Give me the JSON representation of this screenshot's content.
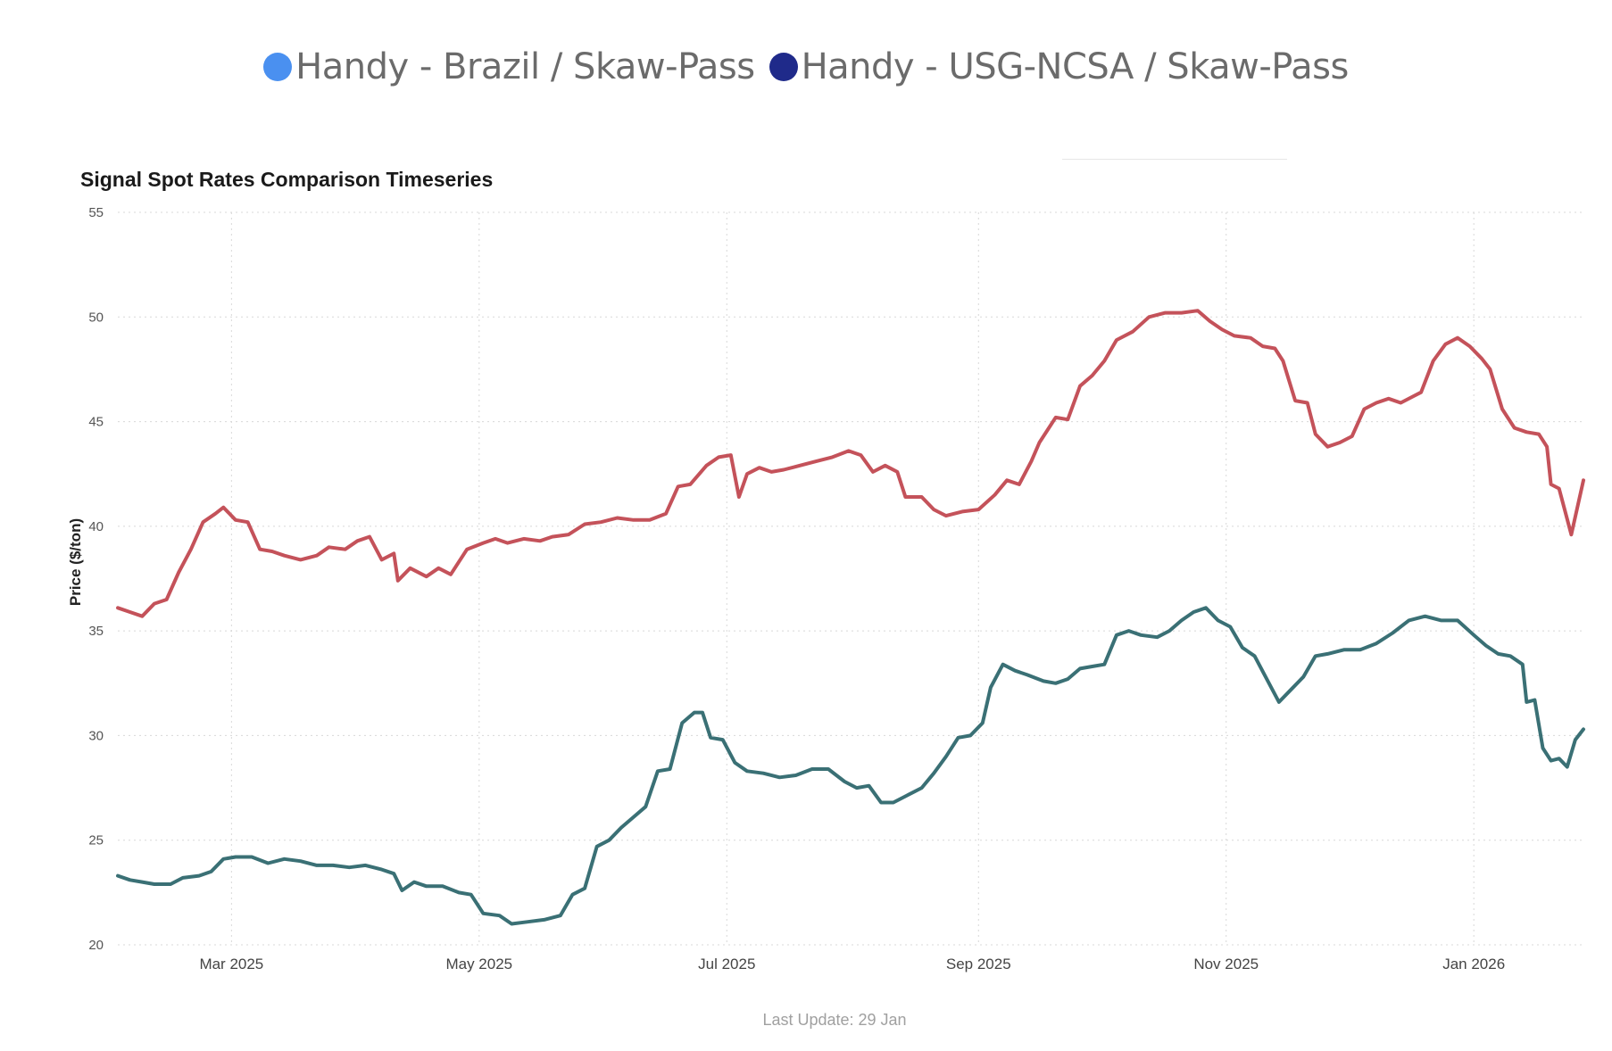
{
  "legend": {
    "items": [
      {
        "label": "Handy - Brazil / Skaw-Pass",
        "color": "#4a90f0"
      },
      {
        "label": "Handy - USG-NCSA / Skaw-Pass",
        "color": "#1f2a8a"
      }
    ]
  },
  "footer": {
    "text": "Last Update: 29 Jan"
  },
  "chart_data": {
    "type": "line",
    "title": "Signal Spot Rates Comparison Timeseries",
    "xlabel": "",
    "ylabel": "Price ($/ton)",
    "ylim": [
      20,
      55
    ],
    "yticks": [
      20,
      25,
      30,
      35,
      40,
      45,
      50,
      55
    ],
    "xlim": [
      "2025-02-01",
      "2026-01-28"
    ],
    "xticks": [
      {
        "date": "2025-03-01",
        "label": "Mar 2025"
      },
      {
        "date": "2025-05-01",
        "label": "May 2025"
      },
      {
        "date": "2025-07-01",
        "label": "Jul 2025"
      },
      {
        "date": "2025-09-01",
        "label": "Sep 2025"
      },
      {
        "date": "2025-11-01",
        "label": "Nov 2025"
      },
      {
        "date": "2026-01-01",
        "label": "Jan 2026"
      }
    ],
    "grid": true,
    "series": [
      {
        "name": "Handy - Brazil / Skaw-Pass",
        "color": "#c4525a",
        "points": [
          [
            "2025-02-01",
            36.1
          ],
          [
            "2025-02-04",
            35.9
          ],
          [
            "2025-02-07",
            35.7
          ],
          [
            "2025-02-10",
            36.3
          ],
          [
            "2025-02-13",
            36.5
          ],
          [
            "2025-02-16",
            37.8
          ],
          [
            "2025-02-19",
            38.9
          ],
          [
            "2025-02-22",
            40.2
          ],
          [
            "2025-02-25",
            40.6
          ],
          [
            "2025-02-27",
            40.9
          ],
          [
            "2025-03-02",
            40.3
          ],
          [
            "2025-03-05",
            40.2
          ],
          [
            "2025-03-08",
            38.9
          ],
          [
            "2025-03-11",
            38.8
          ],
          [
            "2025-03-14",
            38.6
          ],
          [
            "2025-03-18",
            38.4
          ],
          [
            "2025-03-22",
            38.6
          ],
          [
            "2025-03-25",
            39.0
          ],
          [
            "2025-03-29",
            38.9
          ],
          [
            "2025-04-01",
            39.3
          ],
          [
            "2025-04-04",
            39.5
          ],
          [
            "2025-04-07",
            38.4
          ],
          [
            "2025-04-10",
            38.7
          ],
          [
            "2025-04-11",
            37.4
          ],
          [
            "2025-04-14",
            38.0
          ],
          [
            "2025-04-18",
            37.6
          ],
          [
            "2025-04-21",
            38.0
          ],
          [
            "2025-04-24",
            37.7
          ],
          [
            "2025-04-28",
            38.9
          ],
          [
            "2025-05-02",
            39.2
          ],
          [
            "2025-05-05",
            39.4
          ],
          [
            "2025-05-08",
            39.2
          ],
          [
            "2025-05-12",
            39.4
          ],
          [
            "2025-05-16",
            39.3
          ],
          [
            "2025-05-19",
            39.5
          ],
          [
            "2025-05-23",
            39.6
          ],
          [
            "2025-05-27",
            40.1
          ],
          [
            "2025-05-31",
            40.2
          ],
          [
            "2025-06-04",
            40.4
          ],
          [
            "2025-06-08",
            40.3
          ],
          [
            "2025-06-12",
            40.3
          ],
          [
            "2025-06-16",
            40.6
          ],
          [
            "2025-06-19",
            41.9
          ],
          [
            "2025-06-22",
            42.0
          ],
          [
            "2025-06-26",
            42.9
          ],
          [
            "2025-06-29",
            43.3
          ],
          [
            "2025-07-02",
            43.4
          ],
          [
            "2025-07-04",
            41.4
          ],
          [
            "2025-07-06",
            42.5
          ],
          [
            "2025-07-09",
            42.8
          ],
          [
            "2025-07-12",
            42.6
          ],
          [
            "2025-07-15",
            42.7
          ],
          [
            "2025-07-19",
            42.9
          ],
          [
            "2025-07-23",
            43.1
          ],
          [
            "2025-07-27",
            43.3
          ],
          [
            "2025-07-31",
            43.6
          ],
          [
            "2025-08-03",
            43.4
          ],
          [
            "2025-08-06",
            42.6
          ],
          [
            "2025-08-09",
            42.9
          ],
          [
            "2025-08-12",
            42.6
          ],
          [
            "2025-08-14",
            41.4
          ],
          [
            "2025-08-18",
            41.4
          ],
          [
            "2025-08-21",
            40.8
          ],
          [
            "2025-08-24",
            40.5
          ],
          [
            "2025-08-28",
            40.7
          ],
          [
            "2025-09-01",
            40.8
          ],
          [
            "2025-09-05",
            41.5
          ],
          [
            "2025-09-08",
            42.2
          ],
          [
            "2025-09-11",
            42.0
          ],
          [
            "2025-09-14",
            43.1
          ],
          [
            "2025-09-16",
            44.0
          ],
          [
            "2025-09-18",
            44.6
          ],
          [
            "2025-09-20",
            45.2
          ],
          [
            "2025-09-23",
            45.1
          ],
          [
            "2025-09-26",
            46.7
          ],
          [
            "2025-09-29",
            47.2
          ],
          [
            "2025-10-02",
            47.9
          ],
          [
            "2025-10-05",
            48.9
          ],
          [
            "2025-10-09",
            49.3
          ],
          [
            "2025-10-13",
            50.0
          ],
          [
            "2025-10-17",
            50.2
          ],
          [
            "2025-10-21",
            50.2
          ],
          [
            "2025-10-25",
            50.3
          ],
          [
            "2025-10-28",
            49.8
          ],
          [
            "2025-10-31",
            49.4
          ],
          [
            "2025-11-03",
            49.1
          ],
          [
            "2025-11-07",
            49.0
          ],
          [
            "2025-11-10",
            48.6
          ],
          [
            "2025-11-13",
            48.5
          ],
          [
            "2025-11-15",
            47.9
          ],
          [
            "2025-11-18",
            46.0
          ],
          [
            "2025-11-21",
            45.9
          ],
          [
            "2025-11-23",
            44.4
          ],
          [
            "2025-11-26",
            43.8
          ],
          [
            "2025-11-29",
            44.0
          ],
          [
            "2025-12-02",
            44.3
          ],
          [
            "2025-12-05",
            45.6
          ],
          [
            "2025-12-08",
            45.9
          ],
          [
            "2025-12-11",
            46.1
          ],
          [
            "2025-12-14",
            45.9
          ],
          [
            "2025-12-17",
            46.2
          ],
          [
            "2025-12-19",
            46.4
          ],
          [
            "2025-12-22",
            47.9
          ],
          [
            "2025-12-25",
            48.7
          ],
          [
            "2025-12-28",
            49.0
          ],
          [
            "2025-12-31",
            48.6
          ],
          [
            "2026-01-03",
            48.0
          ],
          [
            "2026-01-05",
            47.5
          ],
          [
            "2026-01-08",
            45.6
          ],
          [
            "2026-01-11",
            44.7
          ],
          [
            "2026-01-14",
            44.5
          ],
          [
            "2026-01-17",
            44.4
          ],
          [
            "2026-01-19",
            43.8
          ],
          [
            "2026-01-20",
            42.0
          ],
          [
            "2026-01-22",
            41.8
          ],
          [
            "2026-01-25",
            39.6
          ],
          [
            "2026-01-28",
            42.2
          ]
        ]
      },
      {
        "name": "Handy - USG-NCSA / Skaw-Pass",
        "color": "#3a7075",
        "points": [
          [
            "2025-02-01",
            23.3
          ],
          [
            "2025-02-04",
            23.1
          ],
          [
            "2025-02-07",
            23.0
          ],
          [
            "2025-02-10",
            22.9
          ],
          [
            "2025-02-14",
            22.9
          ],
          [
            "2025-02-17",
            23.2
          ],
          [
            "2025-02-21",
            23.3
          ],
          [
            "2025-02-24",
            23.5
          ],
          [
            "2025-02-27",
            24.1
          ],
          [
            "2025-03-02",
            24.2
          ],
          [
            "2025-03-06",
            24.2
          ],
          [
            "2025-03-10",
            23.9
          ],
          [
            "2025-03-14",
            24.1
          ],
          [
            "2025-03-18",
            24.0
          ],
          [
            "2025-03-22",
            23.8
          ],
          [
            "2025-03-26",
            23.8
          ],
          [
            "2025-03-30",
            23.7
          ],
          [
            "2025-04-03",
            23.8
          ],
          [
            "2025-04-07",
            23.6
          ],
          [
            "2025-04-10",
            23.4
          ],
          [
            "2025-04-12",
            22.6
          ],
          [
            "2025-04-15",
            23.0
          ],
          [
            "2025-04-18",
            22.8
          ],
          [
            "2025-04-22",
            22.8
          ],
          [
            "2025-04-26",
            22.5
          ],
          [
            "2025-04-29",
            22.4
          ],
          [
            "2025-05-02",
            21.5
          ],
          [
            "2025-05-06",
            21.4
          ],
          [
            "2025-05-09",
            21.0
          ],
          [
            "2025-05-13",
            21.1
          ],
          [
            "2025-05-17",
            21.2
          ],
          [
            "2025-05-21",
            21.4
          ],
          [
            "2025-05-24",
            22.4
          ],
          [
            "2025-05-27",
            22.7
          ],
          [
            "2025-05-30",
            24.7
          ],
          [
            "2025-06-02",
            25.0
          ],
          [
            "2025-06-05",
            25.6
          ],
          [
            "2025-06-08",
            26.1
          ],
          [
            "2025-06-11",
            26.6
          ],
          [
            "2025-06-14",
            28.3
          ],
          [
            "2025-06-17",
            28.4
          ],
          [
            "2025-06-20",
            30.6
          ],
          [
            "2025-06-23",
            31.1
          ],
          [
            "2025-06-25",
            31.1
          ],
          [
            "2025-06-27",
            29.9
          ],
          [
            "2025-06-30",
            29.8
          ],
          [
            "2025-07-03",
            28.7
          ],
          [
            "2025-07-06",
            28.3
          ],
          [
            "2025-07-10",
            28.2
          ],
          [
            "2025-07-14",
            28.0
          ],
          [
            "2025-07-18",
            28.1
          ],
          [
            "2025-07-22",
            28.4
          ],
          [
            "2025-07-26",
            28.4
          ],
          [
            "2025-07-30",
            27.8
          ],
          [
            "2025-08-02",
            27.5
          ],
          [
            "2025-08-05",
            27.6
          ],
          [
            "2025-08-08",
            26.8
          ],
          [
            "2025-08-11",
            26.8
          ],
          [
            "2025-08-14",
            27.1
          ],
          [
            "2025-08-18",
            27.5
          ],
          [
            "2025-08-21",
            28.2
          ],
          [
            "2025-08-24",
            29.0
          ],
          [
            "2025-08-27",
            29.9
          ],
          [
            "2025-08-30",
            30.0
          ],
          [
            "2025-09-02",
            30.6
          ],
          [
            "2025-09-04",
            32.3
          ],
          [
            "2025-09-07",
            33.4
          ],
          [
            "2025-09-10",
            33.1
          ],
          [
            "2025-09-13",
            32.9
          ],
          [
            "2025-09-17",
            32.6
          ],
          [
            "2025-09-20",
            32.5
          ],
          [
            "2025-09-23",
            32.7
          ],
          [
            "2025-09-26",
            33.2
          ],
          [
            "2025-09-29",
            33.3
          ],
          [
            "2025-10-02",
            33.4
          ],
          [
            "2025-10-05",
            34.8
          ],
          [
            "2025-10-08",
            35.0
          ],
          [
            "2025-10-11",
            34.8
          ],
          [
            "2025-10-15",
            34.7
          ],
          [
            "2025-10-18",
            35.0
          ],
          [
            "2025-10-21",
            35.5
          ],
          [
            "2025-10-24",
            35.9
          ],
          [
            "2025-10-27",
            36.1
          ],
          [
            "2025-10-30",
            35.5
          ],
          [
            "2025-11-02",
            35.2
          ],
          [
            "2025-11-05",
            34.2
          ],
          [
            "2025-11-08",
            33.8
          ],
          [
            "2025-11-11",
            32.7
          ],
          [
            "2025-11-14",
            31.6
          ],
          [
            "2025-11-17",
            32.2
          ],
          [
            "2025-11-20",
            32.8
          ],
          [
            "2025-11-23",
            33.8
          ],
          [
            "2025-11-26",
            33.9
          ],
          [
            "2025-11-30",
            34.1
          ],
          [
            "2025-12-04",
            34.1
          ],
          [
            "2025-12-08",
            34.4
          ],
          [
            "2025-12-12",
            34.9
          ],
          [
            "2025-12-16",
            35.5
          ],
          [
            "2025-12-20",
            35.7
          ],
          [
            "2025-12-24",
            35.5
          ],
          [
            "2025-12-28",
            35.5
          ],
          [
            "2026-01-01",
            34.8
          ],
          [
            "2026-01-04",
            34.3
          ],
          [
            "2026-01-07",
            33.9
          ],
          [
            "2026-01-10",
            33.8
          ],
          [
            "2026-01-13",
            33.4
          ],
          [
            "2026-01-14",
            31.6
          ],
          [
            "2026-01-16",
            31.7
          ],
          [
            "2026-01-18",
            29.4
          ],
          [
            "2026-01-20",
            28.8
          ],
          [
            "2026-01-22",
            28.9
          ],
          [
            "2026-01-24",
            28.5
          ],
          [
            "2026-01-26",
            29.8
          ],
          [
            "2026-01-28",
            30.3
          ]
        ]
      }
    ]
  }
}
